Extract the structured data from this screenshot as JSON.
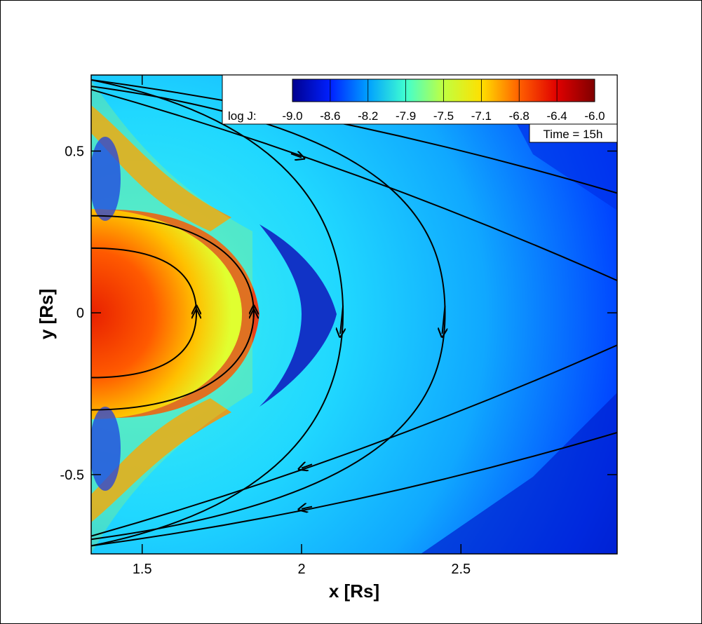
{
  "chart_data": {
    "type": "heatmap",
    "colorbar": {
      "title": "log J:",
      "ticks": [
        "-9.0",
        "-8.6",
        "-8.2",
        "-7.9",
        "-7.5",
        "-7.1",
        "-6.8",
        "-6.4",
        "-6.0"
      ],
      "range": [
        -9.0,
        -6.0
      ],
      "colormap": [
        "#00008f",
        "#0020ff",
        "#00a0ff",
        "#40ffd0",
        "#c0ff40",
        "#ffe000",
        "#ff6000",
        "#e00000",
        "#800000"
      ]
    },
    "time_label": "Time = 15h",
    "xlabel": "x [Rs]",
    "ylabel": "y [Rs]",
    "xlim": [
      1.34,
      2.99
    ],
    "ylim": [
      -0.745,
      0.735
    ],
    "xticks": [
      {
        "value": 1.5,
        "label": "1.5"
      },
      {
        "value": 2.0,
        "label": "2"
      },
      {
        "value": 2.5,
        "label": "2.5"
      }
    ],
    "yticks": [
      {
        "value": 0.5,
        "label": "0.5"
      },
      {
        "value": 0.0,
        "label": "0"
      },
      {
        "value": -0.5,
        "label": "-0.5"
      }
    ],
    "closed_loops": [
      {
        "name": "loop-inner",
        "x0": 1.34,
        "y_half": 0.2,
        "x_tip": 1.67
      },
      {
        "name": "loop-middle",
        "x0": 1.34,
        "y_half": 0.3,
        "x_tip": 1.85
      }
    ],
    "open_field_lines": [
      {
        "x_apex": 2.13,
        "y_end": 0.72
      },
      {
        "x_apex": 2.45,
        "y_end": 0.7
      }
    ],
    "outflow_lines": [
      {
        "x_start": 1.34,
        "y_start": 0.69,
        "x_end": 2.99,
        "y_end": 0.1
      },
      {
        "x_start": 1.34,
        "y_start": 0.72,
        "x_end": 2.99,
        "y_end": 0.37
      }
    ]
  }
}
